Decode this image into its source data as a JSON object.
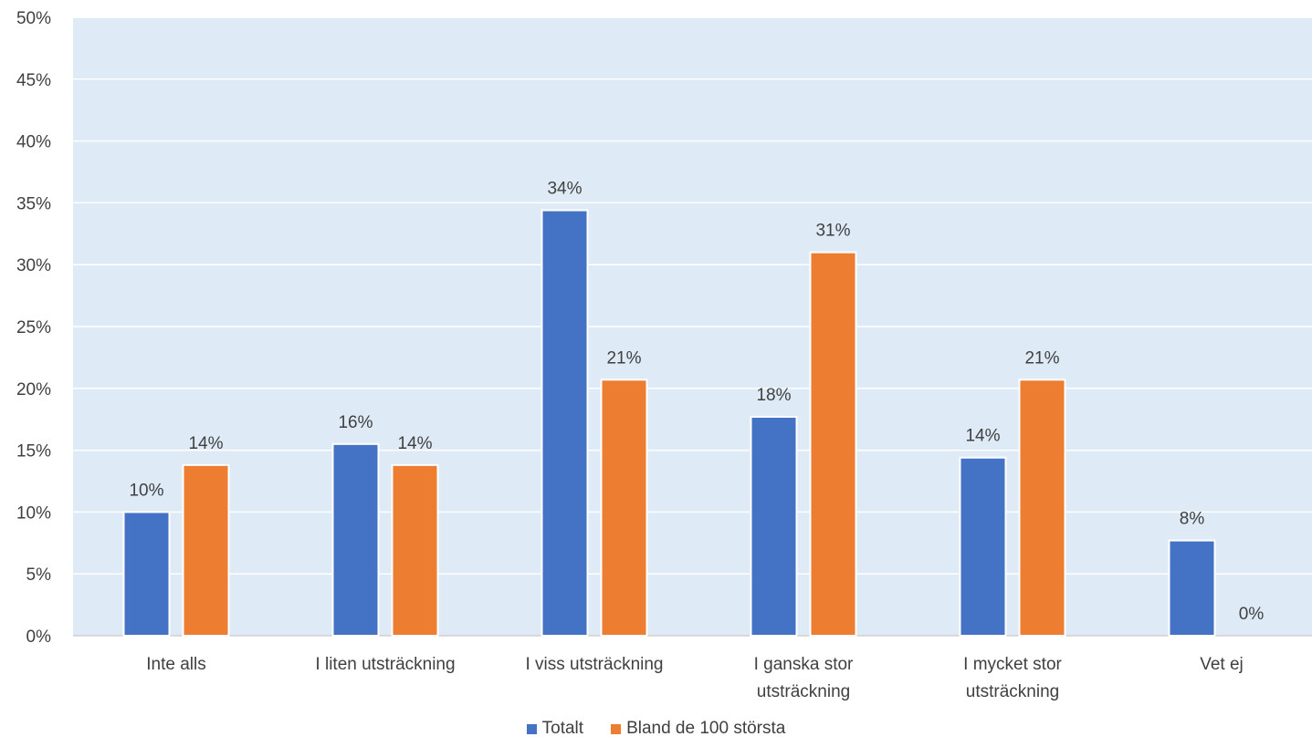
{
  "chart_data": {
    "type": "bar",
    "categories": [
      [
        "Inte alls"
      ],
      [
        "I liten utsträckning"
      ],
      [
        "I viss utsträckning"
      ],
      [
        "I ganska stor",
        "utsträckning"
      ],
      [
        "I mycket stor",
        "utsträckning"
      ],
      [
        "Vet ej"
      ]
    ],
    "series": [
      {
        "name": "Totalt",
        "color": "#4472C4",
        "values": [
          10,
          15.5,
          34.4,
          17.7,
          14.4,
          7.7
        ],
        "labels": [
          "10%",
          "16%",
          "34%",
          "18%",
          "14%",
          "8%"
        ]
      },
      {
        "name": "Bland de 100 största",
        "color": "#ED7D31",
        "values": [
          13.8,
          13.8,
          20.7,
          31.0,
          20.7,
          0
        ],
        "labels": [
          "14%",
          "14%",
          "21%",
          "31%",
          "21%",
          "0%"
        ]
      }
    ],
    "yticks": [
      "0%",
      "5%",
      "10%",
      "15%",
      "20%",
      "25%",
      "30%",
      "35%",
      "40%",
      "45%",
      "50%"
    ],
    "ylim": [
      0,
      50
    ],
    "grid": true,
    "plot_background": "#DEEAF6",
    "legend_position": "bottom"
  }
}
